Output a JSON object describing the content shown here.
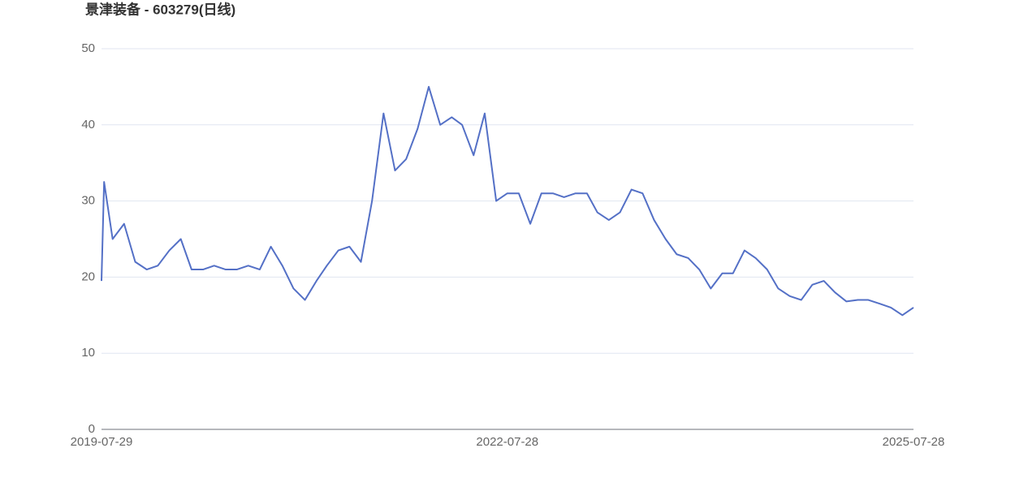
{
  "chart_data": {
    "type": "line",
    "title": "景津装备 - 603279(日线)",
    "x": [
      "2019-07-29",
      "2019-08-05",
      "2019-08-28",
      "2019-09-28",
      "2019-10-28",
      "2019-11-28",
      "2019-12-28",
      "2020-01-28",
      "2020-02-28",
      "2020-03-28",
      "2020-04-28",
      "2020-05-28",
      "2020-06-28",
      "2020-07-28",
      "2020-08-28",
      "2020-09-28",
      "2020-10-28",
      "2020-11-28",
      "2020-12-28",
      "2021-01-28",
      "2021-02-28",
      "2021-03-28",
      "2021-04-28",
      "2021-05-28",
      "2021-06-28",
      "2021-07-28",
      "2021-08-28",
      "2021-09-28",
      "2021-10-28",
      "2021-11-28",
      "2021-12-28",
      "2022-01-28",
      "2022-02-28",
      "2022-03-28",
      "2022-04-28",
      "2022-05-28",
      "2022-06-28",
      "2022-07-28",
      "2022-08-28",
      "2022-09-28",
      "2022-10-28",
      "2022-11-28",
      "2022-12-28",
      "2023-01-28",
      "2023-02-28",
      "2023-03-28",
      "2023-04-28",
      "2023-05-28",
      "2023-06-28",
      "2023-07-28",
      "2023-08-28",
      "2023-09-28",
      "2023-10-28",
      "2023-11-28",
      "2023-12-28",
      "2024-01-28",
      "2024-02-28",
      "2024-03-28",
      "2024-04-28",
      "2024-05-28",
      "2024-06-28",
      "2024-07-28",
      "2024-08-28",
      "2024-09-28",
      "2024-10-28",
      "2024-11-28",
      "2024-12-28",
      "2025-01-28",
      "2025-02-28",
      "2025-03-28",
      "2025-04-28",
      "2025-05-28",
      "2025-06-28",
      "2025-07-28"
    ],
    "values": [
      19.5,
      32.5,
      25,
      27,
      22,
      21,
      21.5,
      23.5,
      25,
      21,
      21,
      21.5,
      21,
      21,
      21.5,
      21,
      24,
      21.5,
      18.5,
      17,
      19.5,
      21.5,
      23.5,
      24,
      22,
      30,
      41.5,
      34,
      35.5,
      39.5,
      45,
      40,
      41,
      40,
      36,
      41.5,
      30,
      31,
      31,
      27,
      31,
      31,
      30.5,
      31,
      31,
      28.5,
      27.5,
      28.5,
      31.5,
      31,
      27.5,
      25,
      23,
      22.5,
      21,
      18.5,
      20.5,
      20.5,
      23.5,
      22.5,
      21,
      18.5,
      17.5,
      17,
      19,
      19.5,
      18,
      16.8,
      17,
      17,
      16.5,
      16,
      15,
      16
    ],
    "color": "#5470c6",
    "xlim": [
      "2019-07-29",
      "2025-07-28"
    ],
    "xticks": [
      "2019-07-29",
      "2022-07-28",
      "2025-07-28"
    ],
    "ylim": [
      0,
      50
    ],
    "yticks": [
      0,
      10,
      20,
      30,
      40,
      50
    ],
    "grid": true
  }
}
